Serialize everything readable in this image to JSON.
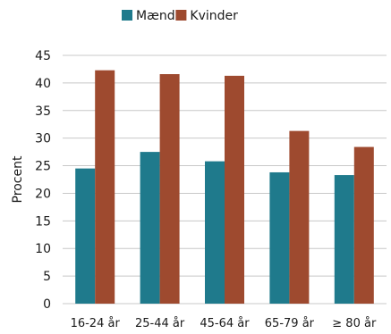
{
  "chart_data": {
    "type": "bar",
    "ylabel": "Procent",
    "ylim": [
      0,
      45
    ],
    "yticks": [
      0,
      5,
      10,
      15,
      20,
      25,
      30,
      35,
      40,
      45
    ],
    "grid": true,
    "legend": "top-center",
    "categories": [
      "16-24 år",
      "25-44 år",
      "45-64 år",
      "65-79 år",
      "≥ 80 år"
    ],
    "series": [
      {
        "name": "Mænd",
        "color": "#1f7a8c",
        "values": [
          24.5,
          27.5,
          25.8,
          23.8,
          23.3
        ]
      },
      {
        "name": "Kvinder",
        "color": "#9e4a2f",
        "values": [
          42.3,
          41.6,
          41.3,
          31.3,
          28.4
        ]
      }
    ]
  }
}
